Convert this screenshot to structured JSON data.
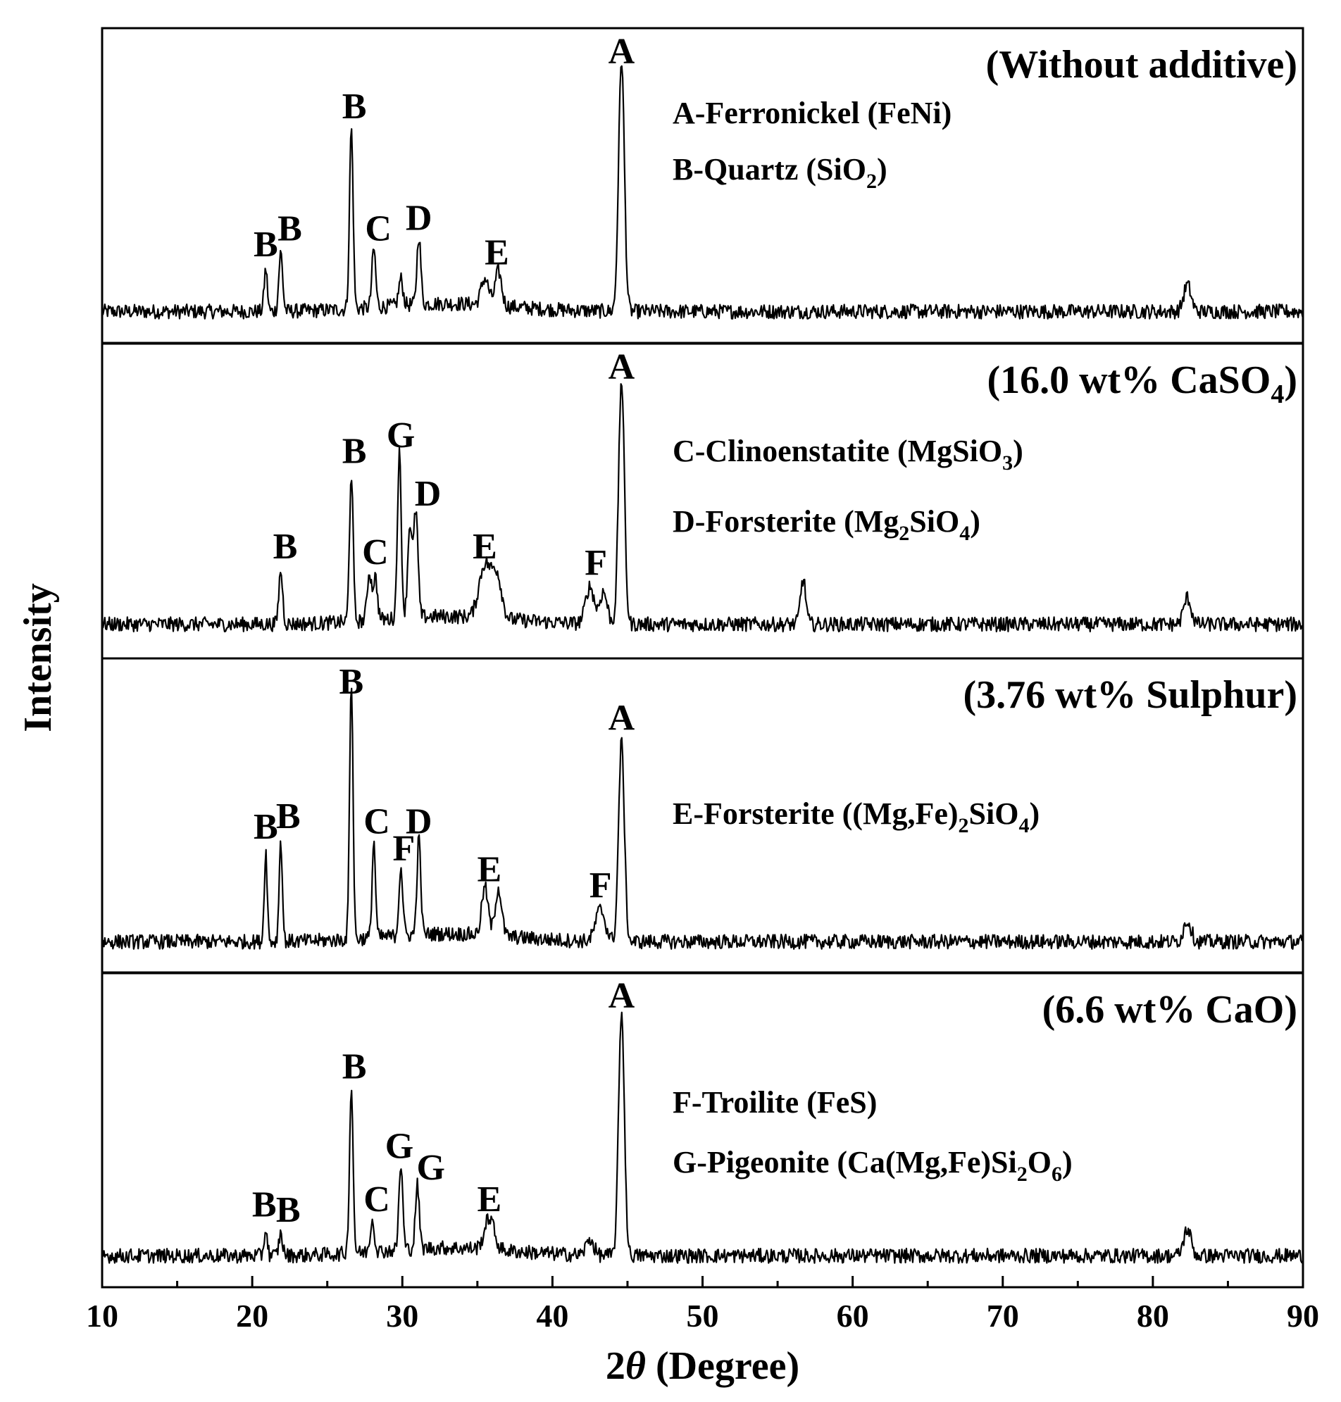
{
  "chart_data": {
    "type": "line",
    "xlabel_prefix": "2",
    "xlabel_symbol": "θ",
    "xlabel_suffix": " (Degree)",
    "ylabel": "Intensity",
    "xlim": [
      10,
      90
    ],
    "xticks": [
      "10",
      "20",
      "30",
      "40",
      "50",
      "60",
      "70",
      "80",
      "90"
    ],
    "panels": [
      {
        "condition": {
          "text": "(Without additive)",
          "sub": "",
          "close": ""
        },
        "legend": [
          {
            "parts": [
              {
                "t": "A-Ferronickel (FeNi)"
              }
            ]
          },
          {
            "parts": [
              {
                "t": "B-Quartz (SiO"
              },
              {
                "t": "2",
                "sub": true
              },
              {
                "t": ")"
              }
            ]
          }
        ],
        "baseline": 0.06,
        "peaks": [
          {
            "x": 20.9,
            "h": 0.16,
            "w": 0.15
          },
          {
            "x": 21.9,
            "h": 0.22,
            "w": 0.18
          },
          {
            "x": 26.6,
            "h": 0.68,
            "w": 0.17
          },
          {
            "x": 28.1,
            "h": 0.22,
            "w": 0.18
          },
          {
            "x": 29.9,
            "h": 0.1,
            "w": 0.2
          },
          {
            "x": 31.1,
            "h": 0.26,
            "w": 0.18
          },
          {
            "x": 35.5,
            "h": 0.1,
            "w": 0.35
          },
          {
            "x": 36.4,
            "h": 0.13,
            "w": 0.3
          },
          {
            "x": 44.6,
            "h": 0.95,
            "w": 0.27
          },
          {
            "x": 82.3,
            "h": 0.1,
            "w": 0.35
          }
        ],
        "labels": [
          {
            "x": 20.9,
            "t": "B"
          },
          {
            "x": 22.5,
            "t": "B"
          },
          {
            "x": 26.8,
            "t": "B"
          },
          {
            "x": 28.4,
            "t": "C"
          },
          {
            "x": 31.1,
            "t": "D"
          },
          {
            "x": 36.3,
            "t": "E"
          },
          {
            "x": 44.6,
            "t": "A"
          }
        ]
      },
      {
        "condition": {
          "text": "(16.0 wt% CaSO",
          "sub": "4",
          "close": ")"
        },
        "legend": [
          {
            "parts": [
              {
                "t": "C-Clinoenstatite (MgSiO"
              },
              {
                "t": "3",
                "sub": true
              },
              {
                "t": ")"
              }
            ]
          },
          {
            "parts": [
              {
                "t": "D-Forsterite (Mg"
              },
              {
                "t": "2",
                "sub": true
              },
              {
                "t": "SiO"
              },
              {
                "t": "4",
                "sub": true
              },
              {
                "t": ")"
              }
            ]
          }
        ],
        "baseline": 0.07,
        "peaks": [
          {
            "x": 21.9,
            "h": 0.2,
            "w": 0.18
          },
          {
            "x": 26.6,
            "h": 0.56,
            "w": 0.17
          },
          {
            "x": 27.8,
            "h": 0.18,
            "w": 0.2
          },
          {
            "x": 28.2,
            "h": 0.16,
            "w": 0.2
          },
          {
            "x": 29.8,
            "h": 0.62,
            "w": 0.18
          },
          {
            "x": 30.5,
            "h": 0.35,
            "w": 0.2
          },
          {
            "x": 30.9,
            "h": 0.4,
            "w": 0.2
          },
          {
            "x": 35.5,
            "h": 0.2,
            "w": 0.55
          },
          {
            "x": 36.3,
            "h": 0.16,
            "w": 0.45
          },
          {
            "x": 42.5,
            "h": 0.14,
            "w": 0.4
          },
          {
            "x": 43.4,
            "h": 0.12,
            "w": 0.35
          },
          {
            "x": 44.6,
            "h": 0.92,
            "w": 0.27
          },
          {
            "x": 56.7,
            "h": 0.17,
            "w": 0.25
          },
          {
            "x": 82.3,
            "h": 0.1,
            "w": 0.35
          }
        ],
        "labels": [
          {
            "x": 22.2,
            "t": "B"
          },
          {
            "x": 26.8,
            "t": "B"
          },
          {
            "x": 29.9,
            "t": "G"
          },
          {
            "x": 28.2,
            "t": "C"
          },
          {
            "x": 31.7,
            "t": "D"
          },
          {
            "x": 35.5,
            "t": "E"
          },
          {
            "x": 42.9,
            "t": "F"
          },
          {
            "x": 44.6,
            "t": "A"
          }
        ]
      },
      {
        "condition": {
          "text": "(3.76 wt% Sulphur)",
          "sub": "",
          "close": ""
        },
        "legend": [
          {
            "parts": [
              {
                "t": "E-Forsterite ((Mg,Fe)"
              },
              {
                "t": "2",
                "sub": true
              },
              {
                "t": "SiO"
              },
              {
                "t": "4",
                "sub": true
              },
              {
                "t": ")"
              }
            ]
          }
        ],
        "baseline": 0.06,
        "peaks": [
          {
            "x": 20.9,
            "h": 0.34,
            "w": 0.14
          },
          {
            "x": 21.9,
            "h": 0.38,
            "w": 0.15
          },
          {
            "x": 26.6,
            "h": 0.98,
            "w": 0.16
          },
          {
            "x": 28.1,
            "h": 0.36,
            "w": 0.16
          },
          {
            "x": 29.9,
            "h": 0.26,
            "w": 0.18
          },
          {
            "x": 31.1,
            "h": 0.36,
            "w": 0.18
          },
          {
            "x": 35.5,
            "h": 0.18,
            "w": 0.3
          },
          {
            "x": 36.4,
            "h": 0.18,
            "w": 0.3
          },
          {
            "x": 43.2,
            "h": 0.12,
            "w": 0.45
          },
          {
            "x": 44.6,
            "h": 0.75,
            "w": 0.27
          },
          {
            "x": 82.3,
            "h": 0.08,
            "w": 0.35
          }
        ],
        "labels": [
          {
            "x": 20.9,
            "t": "B"
          },
          {
            "x": 22.4,
            "t": "B"
          },
          {
            "x": 26.6,
            "t": "B"
          },
          {
            "x": 28.3,
            "t": "C"
          },
          {
            "x": 31.1,
            "t": "D"
          },
          {
            "x": 30.1,
            "t": "F"
          },
          {
            "x": 35.8,
            "t": "E"
          },
          {
            "x": 43.2,
            "t": "F"
          },
          {
            "x": 44.6,
            "t": "A"
          }
        ]
      },
      {
        "condition": {
          "text": "(6.6 wt% CaO)",
          "sub": "",
          "close": ""
        },
        "legend": [
          {
            "parts": [
              {
                "t": "F-Troilite (FeS)"
              }
            ]
          },
          {
            "parts": [
              {
                "t": "G-Pigeonite  (Ca(Mg,Fe)Si"
              },
              {
                "t": "2",
                "sub": true
              },
              {
                "t": "O"
              },
              {
                "t": "6",
                "sub": true
              },
              {
                "t": ")"
              }
            ]
          }
        ],
        "baseline": 0.06,
        "peaks": [
          {
            "x": 20.9,
            "h": 0.1,
            "w": 0.15
          },
          {
            "x": 21.9,
            "h": 0.08,
            "w": 0.18
          },
          {
            "x": 26.6,
            "h": 0.62,
            "w": 0.17
          },
          {
            "x": 28.0,
            "h": 0.12,
            "w": 0.2
          },
          {
            "x": 29.9,
            "h": 0.32,
            "w": 0.18
          },
          {
            "x": 31.0,
            "h": 0.24,
            "w": 0.18
          },
          {
            "x": 35.8,
            "h": 0.12,
            "w": 0.45
          },
          {
            "x": 42.5,
            "h": 0.06,
            "w": 0.35
          },
          {
            "x": 44.6,
            "h": 0.92,
            "w": 0.27
          },
          {
            "x": 82.3,
            "h": 0.1,
            "w": 0.35
          }
        ],
        "labels": [
          {
            "x": 20.8,
            "t": "B"
          },
          {
            "x": 22.4,
            "t": "B"
          },
          {
            "x": 26.8,
            "t": "B"
          },
          {
            "x": 28.3,
            "t": "C"
          },
          {
            "x": 29.8,
            "t": "G"
          },
          {
            "x": 31.9,
            "t": "G"
          },
          {
            "x": 35.8,
            "t": "E"
          },
          {
            "x": 44.6,
            "t": "A"
          }
        ]
      }
    ]
  }
}
